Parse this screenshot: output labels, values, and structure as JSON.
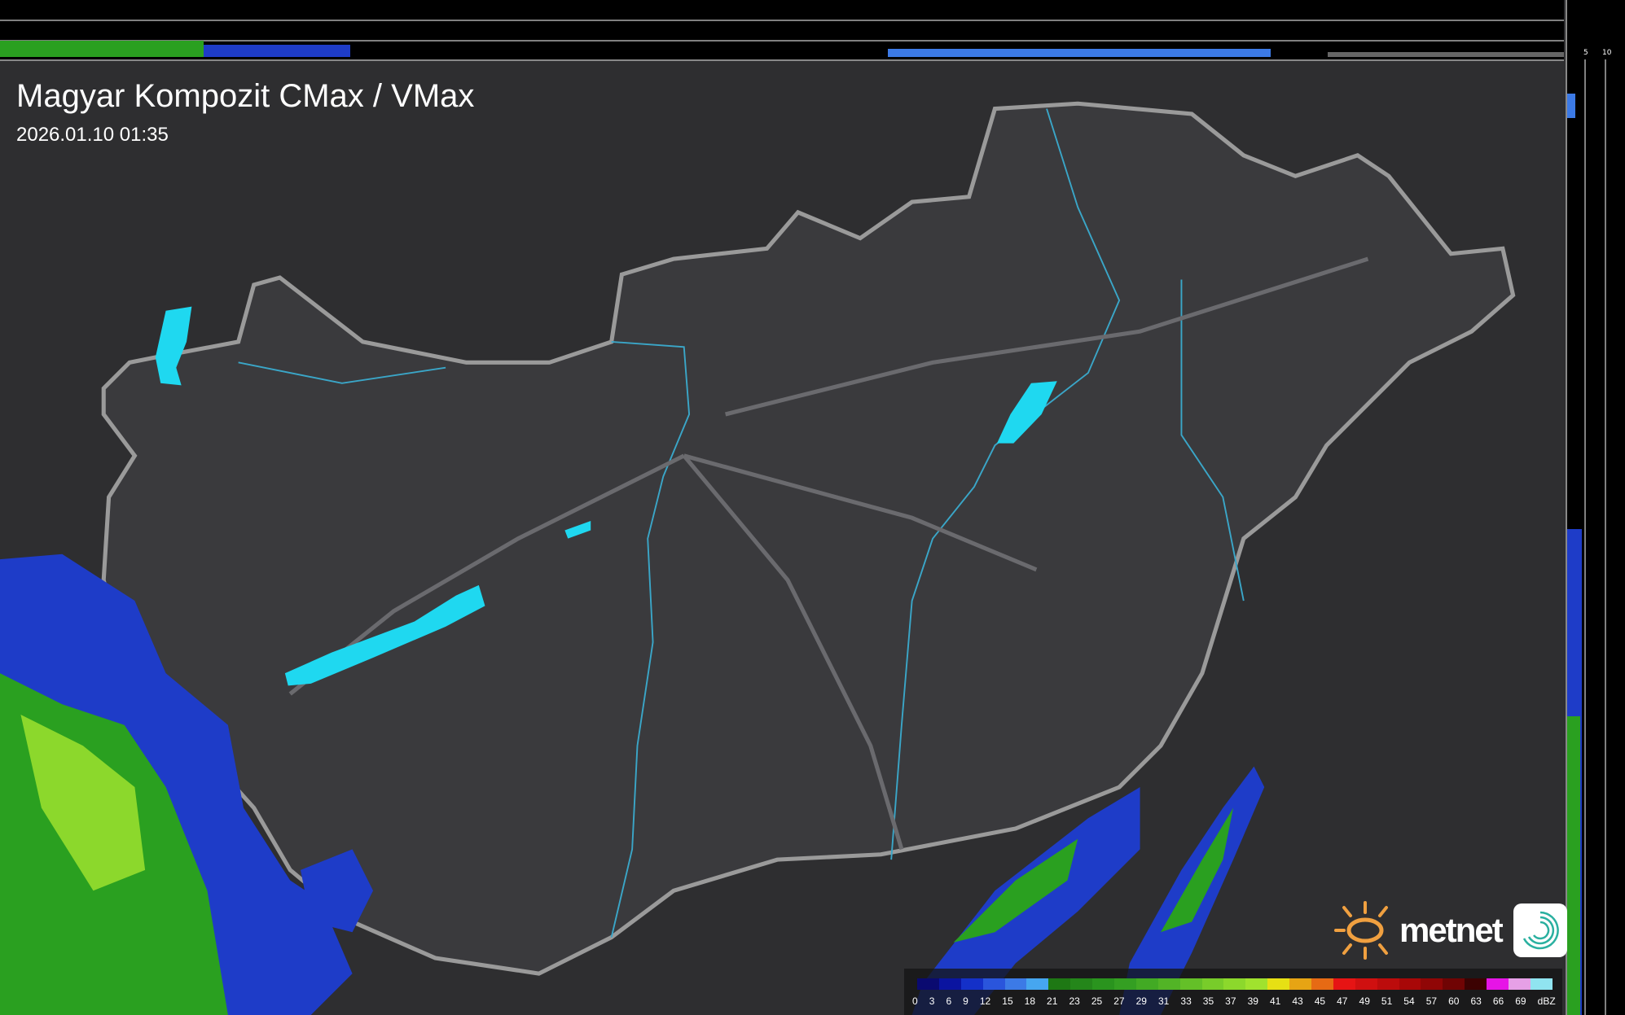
{
  "header": {
    "title": "Magyar Kompozit CMax / VMax",
    "datetime": "2026.01.10 01:35"
  },
  "profile_axes": {
    "top_ticks": [
      "10",
      "5"
    ],
    "right_ticks": [
      "5",
      "10"
    ]
  },
  "legend": {
    "labels": [
      "0",
      "3",
      "6",
      "9",
      "12",
      "15",
      "18",
      "21",
      "23",
      "25",
      "27",
      "29",
      "31",
      "33",
      "35",
      "37",
      "39",
      "41",
      "43",
      "45",
      "47",
      "49",
      "51",
      "54",
      "57",
      "60",
      "63",
      "66",
      "69",
      "dBZ"
    ],
    "colors": [
      "#0a0a70",
      "#0a14a0",
      "#1430c8",
      "#2a55dc",
      "#3c7ae6",
      "#46a6f0",
      "#1e7814",
      "#24861a",
      "#2a941e",
      "#349f22",
      "#42aa24",
      "#52b426",
      "#64c028",
      "#78cc2a",
      "#8cd82c",
      "#a0e22e",
      "#e6e014",
      "#e6a414",
      "#e66a14",
      "#e61414",
      "#d01010",
      "#bc0c0c",
      "#a80808",
      "#900606",
      "#700404",
      "#3c0202",
      "#e614e6",
      "#e6a0e6",
      "#90e4f0"
    ]
  },
  "logo": {
    "text": "metnet"
  },
  "colors": {
    "lake": "#1fd8f0",
    "river": "#3aa6c8",
    "border": "#9a9a9a",
    "background": "#2f2f31"
  }
}
